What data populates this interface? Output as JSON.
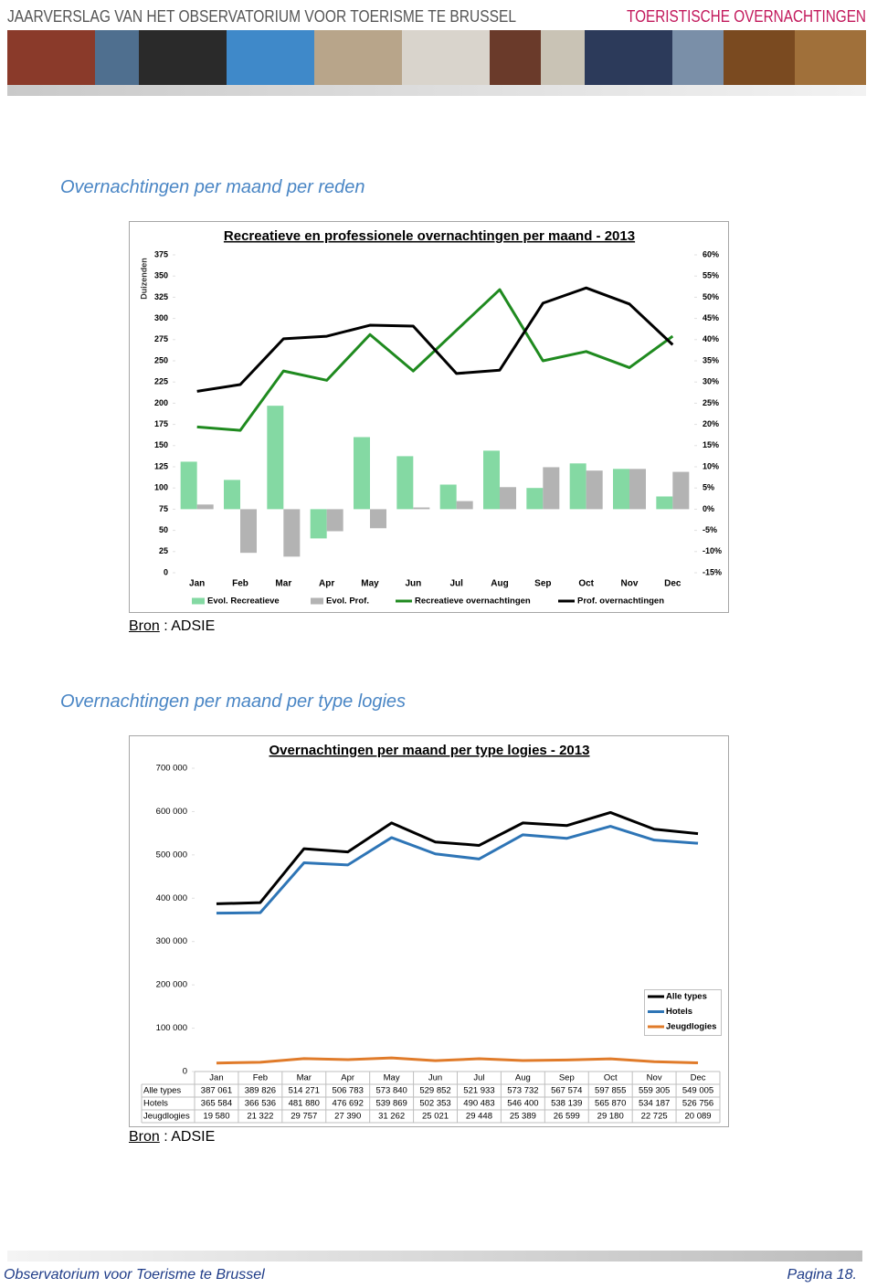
{
  "header": {
    "title": "JAARVERSLAG VAN HET OBSERVATORIUM VOOR TOERISME TE BRUSSEL",
    "section": "TOERISTISCHE OVERNACHTINGEN"
  },
  "sections": [
    {
      "heading": "Overnachtingen per maand per reden",
      "source_label": "Bron",
      "source_text": ": ADSIE"
    },
    {
      "heading": "Overnachtingen per maand per type logies",
      "source_label": "Bron",
      "source_text": ": ADSIE"
    }
  ],
  "chart_data": [
    {
      "type": "combo",
      "title": "Recreatieve en professionele overnachtingen per maand - 2013",
      "y_label": "Duizenden",
      "categories": [
        "Jan",
        "Feb",
        "Mar",
        "Apr",
        "May",
        "Jun",
        "Jul",
        "Aug",
        "Sep",
        "Oct",
        "Nov",
        "Dec"
      ],
      "series": [
        {
          "name": "Evol. Recreatieve",
          "type": "bar",
          "axis": "y2",
          "color": "#84d9a3",
          "values": [
            11.2,
            6.9,
            24.4,
            -6.9,
            17.0,
            12.5,
            5.8,
            13.8,
            5.0,
            10.8,
            9.5,
            3.0
          ]
        },
        {
          "name": "Evol. Prof.",
          "type": "bar",
          "axis": "y2",
          "color": "#b3b3b3",
          "values": [
            1.1,
            -10.3,
            -11.2,
            -5.2,
            -4.5,
            0.4,
            1.9,
            5.2,
            9.9,
            9.1,
            9.5,
            8.8
          ]
        },
        {
          "name": "Recreatieve overnachtingen",
          "type": "line",
          "color": "#1f8a1f",
          "values": [
            172,
            168,
            238,
            227,
            281,
            238,
            286,
            334,
            250,
            261,
            242,
            279
          ]
        },
        {
          "name": "Prof. overnachtingen",
          "type": "line",
          "color": "#000000",
          "values": [
            214,
            222,
            276,
            279,
            292,
            291,
            235,
            239,
            318,
            336,
            317,
            269
          ]
        }
      ],
      "ylim": [
        0,
        375
      ],
      "yticks": [
        0,
        25,
        50,
        75,
        100,
        125,
        150,
        175,
        200,
        225,
        250,
        275,
        300,
        325,
        350,
        375
      ],
      "y2lim": [
        -15,
        60
      ],
      "y2ticks": [
        {
          "value": -15,
          "label": "-15%"
        },
        {
          "value": -10,
          "label": "-10%"
        },
        {
          "value": -5,
          "label": "-5%"
        },
        {
          "value": 0,
          "label": "0%"
        },
        {
          "value": 5,
          "label": "5%"
        },
        {
          "value": 10,
          "label": "10%"
        },
        {
          "value": 15,
          "label": "15%"
        },
        {
          "value": 20,
          "label": "20%"
        },
        {
          "value": 25,
          "label": "25%"
        },
        {
          "value": 30,
          "label": "30%"
        },
        {
          "value": 35,
          "label": "35%"
        },
        {
          "value": 40,
          "label": "40%"
        },
        {
          "value": 45,
          "label": "45%"
        },
        {
          "value": 50,
          "label": "50%"
        },
        {
          "value": 55,
          "label": "55%"
        },
        {
          "value": 60,
          "label": "60%"
        }
      ],
      "grid": false,
      "legend": "bottom"
    },
    {
      "type": "line",
      "title": "Overnachtingen per maand per type logies - 2013",
      "categories": [
        "Jan",
        "Feb",
        "Mar",
        "Apr",
        "May",
        "Jun",
        "Jul",
        "Aug",
        "Sep",
        "Oct",
        "Nov",
        "Dec"
      ],
      "series": [
        {
          "name": "Alle types",
          "color": "#000000",
          "values": [
            387061,
            389826,
            514271,
            506783,
            573840,
            529852,
            521933,
            573732,
            567574,
            597855,
            559305,
            549005
          ],
          "value_labels": [
            "387 061",
            "389 826",
            "514 271",
            "506 783",
            "573 840",
            "529 852",
            "521 933",
            "573 732",
            "567 574",
            "597 855",
            "559 305",
            "549 005"
          ]
        },
        {
          "name": "Hotels",
          "color": "#2e75b6",
          "values": [
            365584,
            366536,
            481880,
            476692,
            539869,
            502353,
            490483,
            546400,
            538139,
            565870,
            534187,
            526756
          ],
          "value_labels": [
            "365 584",
            "366 536",
            "481 880",
            "476 692",
            "539 869",
            "502 353",
            "490 483",
            "546 400",
            "538 139",
            "565 870",
            "534 187",
            "526 756"
          ]
        },
        {
          "name": "Jeugdlogies",
          "color": "#e07b2a",
          "values": [
            19580,
            21322,
            29757,
            27390,
            31262,
            25021,
            29448,
            25389,
            26599,
            29180,
            22725,
            20089
          ],
          "value_labels": [
            "19 580",
            "21 322",
            "29 757",
            "27 390",
            "31 262",
            "25 021",
            "29 448",
            "25 389",
            "26 599",
            "29 180",
            "22 725",
            "20 089"
          ]
        }
      ],
      "ylim": [
        0,
        700000
      ],
      "yticks": [
        0,
        {
          "value": 100000,
          "label": "100 000"
        },
        {
          "value": 200000,
          "label": "200 000"
        },
        {
          "value": 300000,
          "label": "300 000"
        },
        {
          "value": 400000,
          "label": "400 000"
        },
        {
          "value": 500000,
          "label": "500 000"
        },
        {
          "value": 600000,
          "label": "600 000"
        },
        {
          "value": 700000,
          "label": "700 000"
        }
      ],
      "grid": false,
      "legend": "right",
      "data_table": true
    }
  ],
  "footer": {
    "left": "Observatorium voor Toerisme te Brussel",
    "right": "Pagina 18."
  }
}
